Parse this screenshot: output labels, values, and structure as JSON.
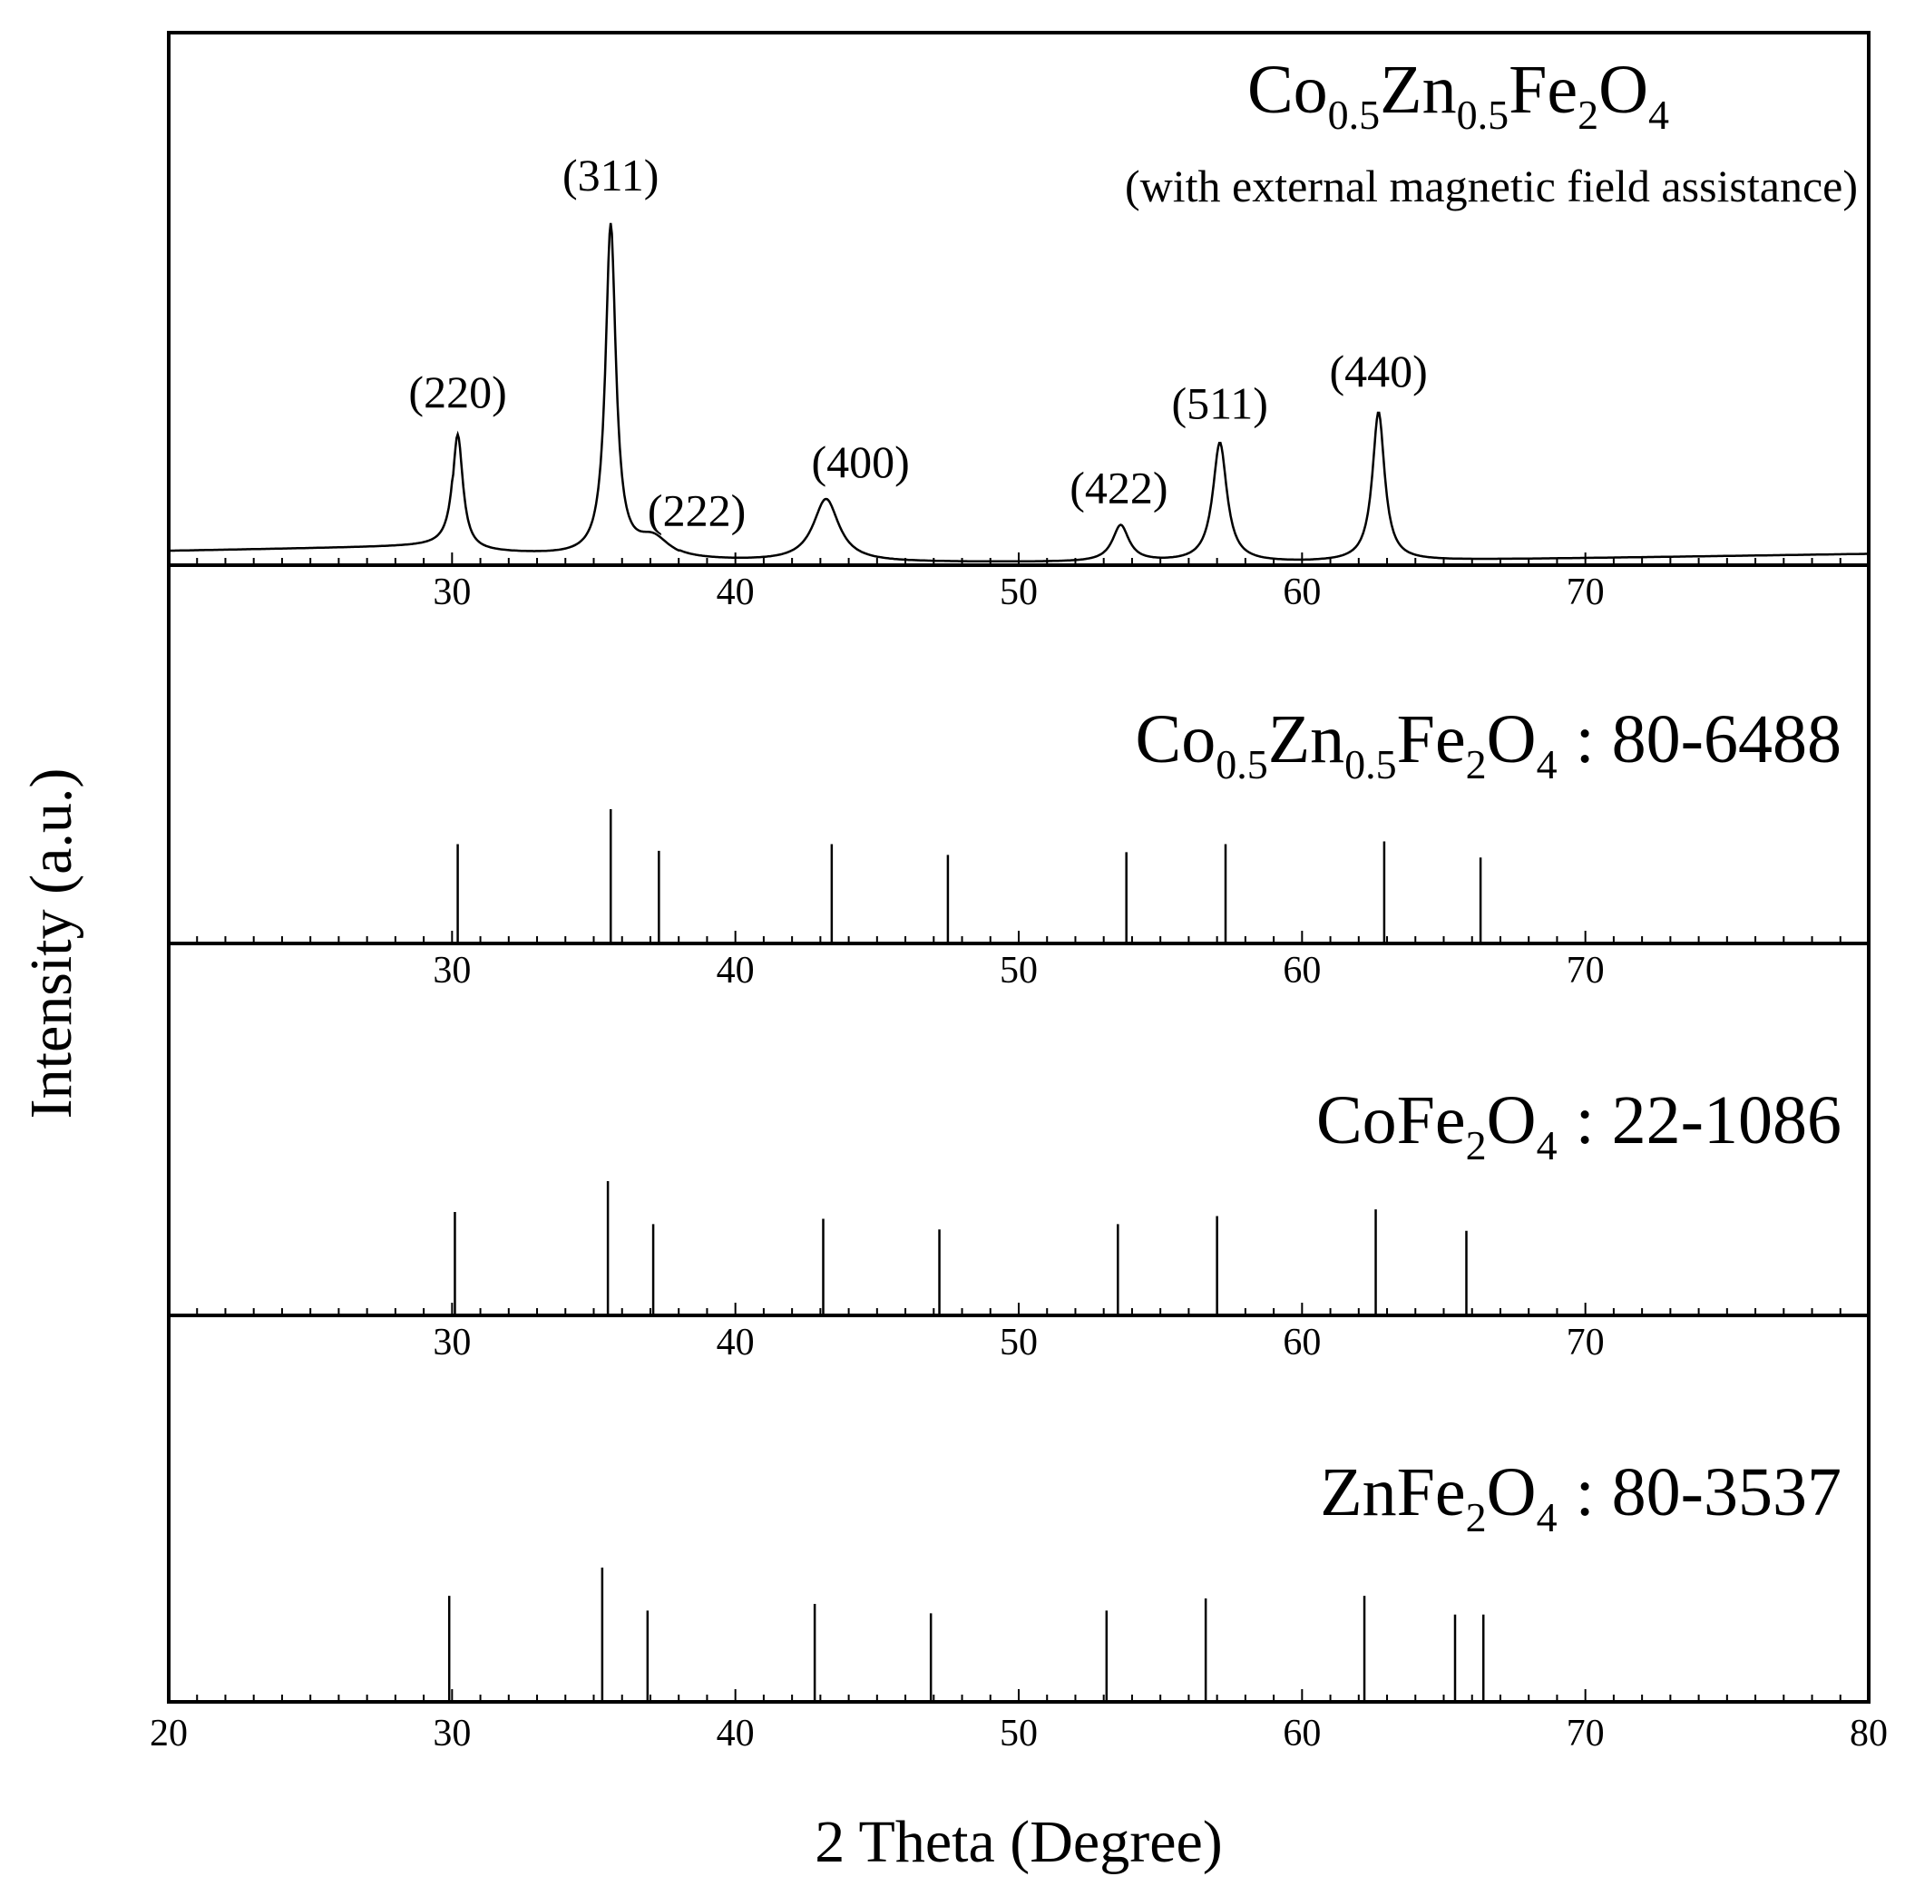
{
  "chart_data": {
    "type": "line",
    "xlabel": "2 Theta (Degree)",
    "ylabel": "Intensity (a.u.)",
    "xlim": [
      20,
      80
    ],
    "x_ticks": [
      "20",
      "30",
      "40",
      "50",
      "60",
      "70",
      "80"
    ],
    "inner_ticks": [
      "30",
      "40",
      "50",
      "60",
      "70"
    ],
    "grid": false,
    "panels": [
      {
        "type": "line",
        "title": {
          "co": "Co",
          "co_sub": "0.5",
          "zn": "Zn",
          "zn_sub": "0.5",
          "fe": "Fe",
          "fe_sub": "2",
          "o": "O",
          "o_sub": "4"
        },
        "subtitle": "(with external magnetic field assistance)",
        "peaks": [
          {
            "label": "(220)",
            "x": 30.2,
            "height": 0.35
          },
          {
            "label": "(311)",
            "x": 35.6,
            "height": 1.0
          },
          {
            "label": "(222)",
            "x": 37.1,
            "height": 0.06
          },
          {
            "label": "(400)",
            "x": 43.2,
            "height": 0.19
          },
          {
            "label": "(422)",
            "x": 53.6,
            "height": 0.11
          },
          {
            "label": "(511)",
            "x": 57.1,
            "height": 0.36
          },
          {
            "label": "(440)",
            "x": 62.7,
            "height": 0.45
          }
        ]
      },
      {
        "type": "bar",
        "title": {
          "co": "Co",
          "co_sub": "0.5",
          "zn": "Zn",
          "zn_sub": "0.5",
          "fe": "Fe",
          "fe_sub": "2",
          "o": "O",
          "o_sub": "4",
          "ref": ": 80-6488"
        },
        "lines": [
          {
            "x": 30.2,
            "value": 0.74
          },
          {
            "x": 35.6,
            "value": 1.0
          },
          {
            "x": 37.3,
            "value": 0.69
          },
          {
            "x": 43.4,
            "value": 0.74
          },
          {
            "x": 47.5,
            "value": 0.66
          },
          {
            "x": 53.8,
            "value": 0.68
          },
          {
            "x": 57.3,
            "value": 0.74
          },
          {
            "x": 62.9,
            "value": 0.76
          },
          {
            "x": 66.3,
            "value": 0.64
          }
        ]
      },
      {
        "type": "bar",
        "title": {
          "compound": "CoFe",
          "fe_sub": "2",
          "o": "O",
          "o_sub": "4",
          "ref": ": 22-1086"
        },
        "lines": [
          {
            "x": 30.1,
            "value": 0.77
          },
          {
            "x": 35.5,
            "value": 1.0
          },
          {
            "x": 37.1,
            "value": 0.68
          },
          {
            "x": 43.1,
            "value": 0.72
          },
          {
            "x": 47.2,
            "value": 0.64
          },
          {
            "x": 53.5,
            "value": 0.68
          },
          {
            "x": 57.0,
            "value": 0.74
          },
          {
            "x": 62.6,
            "value": 0.79
          },
          {
            "x": 65.8,
            "value": 0.63
          }
        ]
      },
      {
        "type": "bar",
        "title": {
          "compound": "ZnFe",
          "fe_sub": "2",
          "o": "O",
          "o_sub": "4",
          "ref": ": 80-3537"
        },
        "lines": [
          {
            "x": 29.9,
            "value": 0.79
          },
          {
            "x": 35.3,
            "value": 1.0
          },
          {
            "x": 36.9,
            "value": 0.68
          },
          {
            "x": 42.8,
            "value": 0.73
          },
          {
            "x": 46.9,
            "value": 0.66
          },
          {
            "x": 53.1,
            "value": 0.68
          },
          {
            "x": 56.6,
            "value": 0.77
          },
          {
            "x": 62.2,
            "value": 0.79
          },
          {
            "x": 65.4,
            "value": 0.65
          },
          {
            "x": 66.4,
            "value": 0.65
          }
        ]
      }
    ]
  }
}
